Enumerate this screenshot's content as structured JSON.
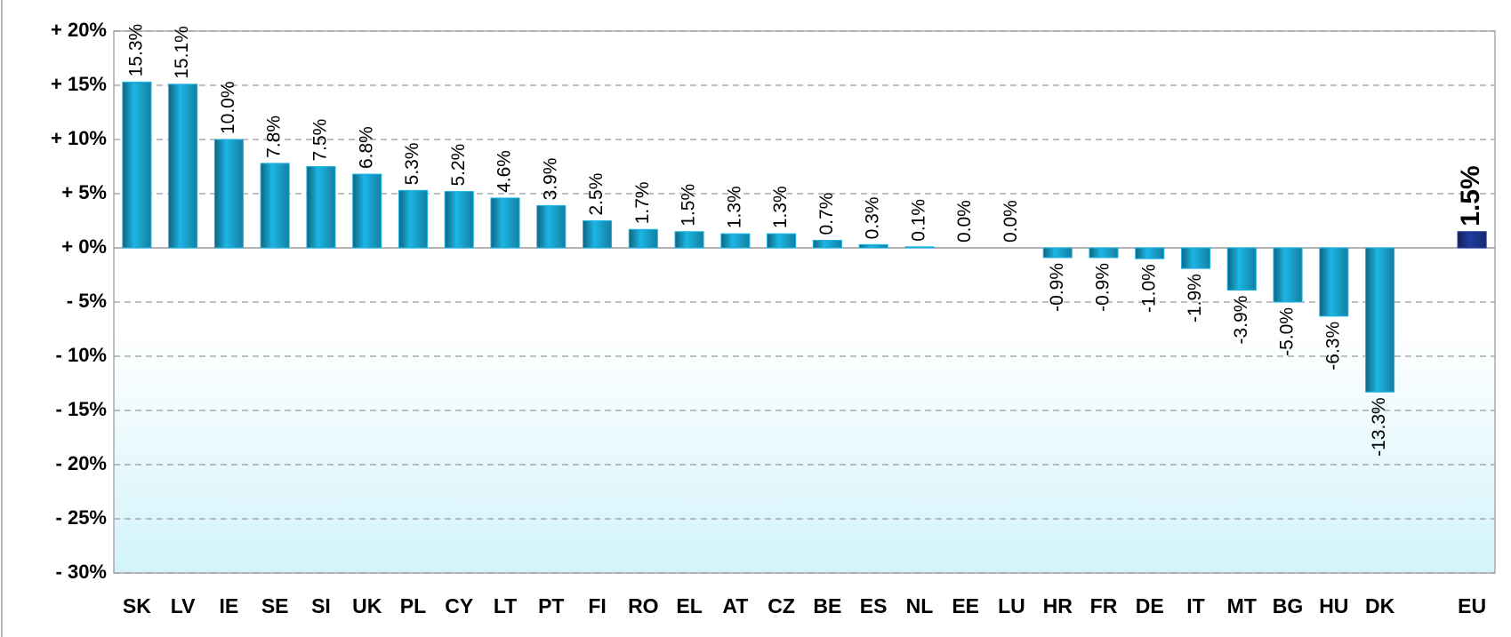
{
  "chart_data": {
    "type": "bar",
    "categories": [
      "SK",
      "LV",
      "IE",
      "SE",
      "SI",
      "UK",
      "PL",
      "CY",
      "LT",
      "PT",
      "FI",
      "RO",
      "EL",
      "AT",
      "CZ",
      "BE",
      "ES",
      "NL",
      "EE",
      "LU",
      "HR",
      "FR",
      "DE",
      "IT",
      "MT",
      "BG",
      "HU",
      "DK",
      null,
      "EU"
    ],
    "values": [
      15.3,
      15.1,
      10.0,
      7.8,
      7.5,
      6.8,
      5.3,
      5.2,
      4.6,
      3.9,
      2.5,
      1.7,
      1.5,
      1.3,
      1.3,
      0.7,
      0.3,
      0.1,
      0.0,
      0.0,
      -0.9,
      -0.9,
      -1.0,
      -1.9,
      -3.9,
      -5.0,
      -6.3,
      -13.3,
      null,
      1.5
    ],
    "value_labels": [
      "15.3%",
      "15.1%",
      "10.0%",
      "7.8%",
      "7.5%",
      "6.8%",
      "5.3%",
      "5.2%",
      "4.6%",
      "3.9%",
      "2.5%",
      "1.7%",
      "1.5%",
      "1.3%",
      "1.3%",
      "0.7%",
      "0.3%",
      "0.1%",
      "0.0%",
      "0.0%",
      "-0.9%",
      "-0.9%",
      "-1.0%",
      "-1.9%",
      "-3.9%",
      "-5.0%",
      "-6.3%",
      "-13.3%",
      null,
      "1.5%"
    ],
    "color": "#1cb6e6",
    "colors": [
      "#1cb6e6",
      "#1cb6e6",
      "#1cb6e6",
      "#1cb6e6",
      "#1cb6e6",
      "#1cb6e6",
      "#1cb6e6",
      "#1cb6e6",
      "#1cb6e6",
      "#1cb6e6",
      "#1cb6e6",
      "#1cb6e6",
      "#1cb6e6",
      "#1cb6e6",
      "#1cb6e6",
      "#1cb6e6",
      "#1cb6e6",
      "#1cb6e6",
      "#1cb6e6",
      "#1cb6e6",
      "#1cb6e6",
      "#1cb6e6",
      "#1cb6e6",
      "#1cb6e6",
      "#1cb6e6",
      "#1cb6e6",
      "#1cb6e6",
      "#1cb6e6",
      null,
      "#1f3c9e"
    ],
    "ylim": [
      -30,
      20
    ],
    "yticks": [
      {
        "value": -30,
        "label": "- 30%"
      },
      {
        "value": -25,
        "label": "- 25%"
      },
      {
        "value": -20,
        "label": "- 20%"
      },
      {
        "value": -15,
        "label": "- 15%"
      },
      {
        "value": -10,
        "label": "- 10%"
      },
      {
        "value": -5,
        "label": "- 5%"
      },
      {
        "value": 0,
        "label": "+ 0%"
      },
      {
        "value": 5,
        "label": "+ 5%"
      },
      {
        "value": 10,
        "label": "+ 10%"
      },
      {
        "value": 15,
        "label": "+ 15%"
      },
      {
        "value": 20,
        "label": "+ 20%"
      }
    ],
    "grid": true
  }
}
